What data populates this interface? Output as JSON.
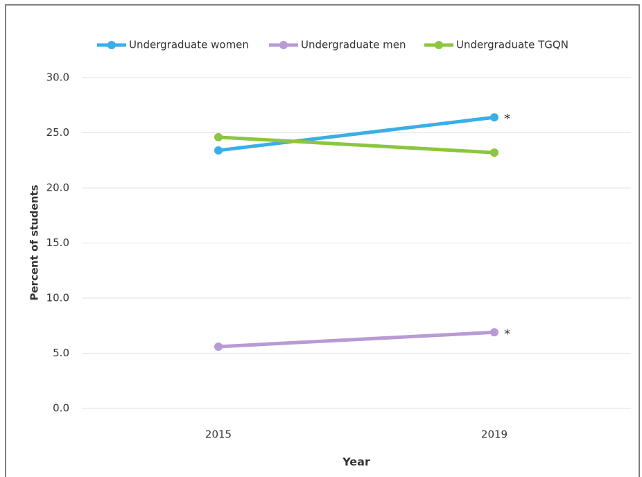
{
  "chart_data": {
    "type": "line",
    "x_label": "Year",
    "y_label": "Percent of students",
    "categories": [
      "2015",
      "2019"
    ],
    "series": [
      {
        "name": "Undergraduate women",
        "color": "#3aaee8",
        "values": [
          23.4,
          26.4
        ]
      },
      {
        "name": "Undergraduate men",
        "color": "#b89ad6",
        "values": [
          5.6,
          6.9
        ]
      },
      {
        "name": "Undergraduate TGQN",
        "color": "#8cc63f",
        "values": [
          24.6,
          23.2
        ]
      }
    ],
    "annotations": [
      "*",
      "*"
    ],
    "ylim": [
      0,
      30
    ],
    "yticks": [
      {
        "value": 0,
        "label": "0.0"
      },
      {
        "value": 5,
        "label": "5.0"
      },
      {
        "value": 10,
        "label": "10.0"
      },
      {
        "value": 15,
        "label": "15.0"
      },
      {
        "value": 20,
        "label": "20.0"
      },
      {
        "value": 25,
        "label": "25.0"
      },
      {
        "value": 30,
        "label": "30.0"
      }
    ],
    "grid": true,
    "legend": "top"
  }
}
